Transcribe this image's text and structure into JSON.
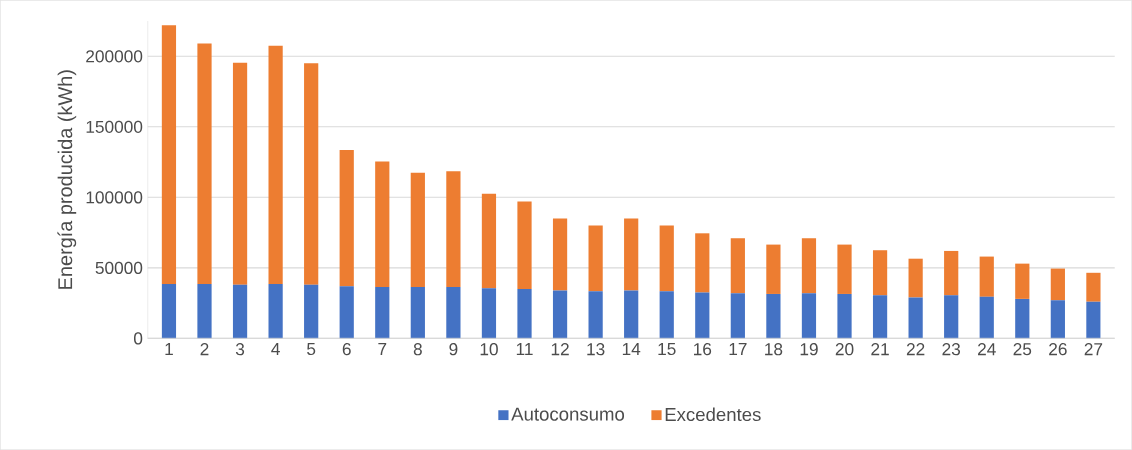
{
  "chart_data": {
    "type": "bar",
    "stacked": true,
    "ylabel": "Energía producida (kWh)",
    "categories": [
      "1",
      "2",
      "3",
      "4",
      "5",
      "6",
      "7",
      "8",
      "9",
      "10",
      "11",
      "12",
      "13",
      "14",
      "15",
      "16",
      "17",
      "18",
      "19",
      "20",
      "21",
      "22",
      "23",
      "24",
      "25",
      "26",
      "27"
    ],
    "series": [
      {
        "name": "Autoconsumo",
        "color": "#4472c4",
        "values": [
          38500,
          38500,
          38000,
          38500,
          38000,
          37000,
          36500,
          36500,
          36500,
          35500,
          35000,
          34000,
          33500,
          34000,
          33500,
          32500,
          32000,
          31500,
          32000,
          31500,
          30500,
          29000,
          30500,
          29500,
          28000,
          27000,
          26000
        ]
      },
      {
        "name": "Excedentes",
        "color": "#ed7d31",
        "values": [
          183500,
          170500,
          157500,
          169000,
          157000,
          96500,
          89000,
          81000,
          82000,
          67000,
          62000,
          51000,
          46500,
          51000,
          46500,
          42000,
          39000,
          35000,
          39000,
          35000,
          32000,
          27500,
          31500,
          28500,
          25000,
          22500,
          20500
        ]
      }
    ],
    "ylim": [
      0,
      225000
    ],
    "yticks": [
      0,
      50000,
      100000,
      150000,
      200000
    ],
    "grid": "y",
    "legend": "bottom"
  }
}
